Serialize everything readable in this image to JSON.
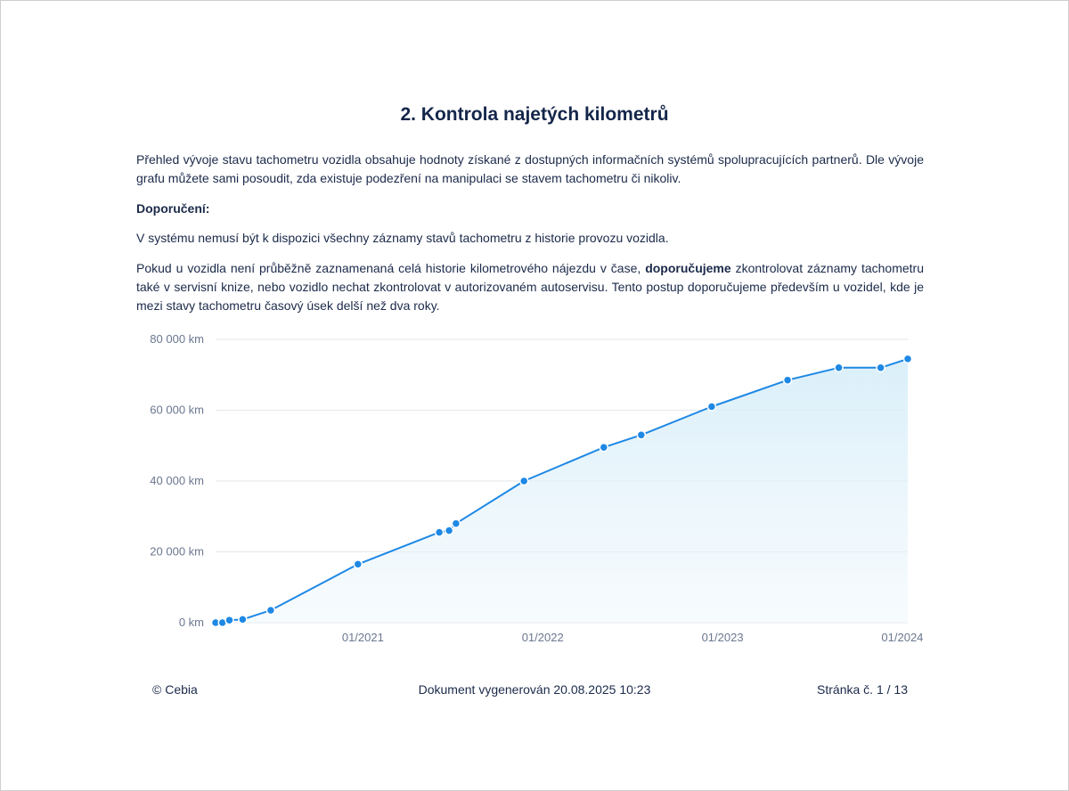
{
  "heading": "2. Kontrola najetých kilometrů",
  "intro": "Přehled vývoje stavu tachometru vozidla obsahuje hodnoty získané z dostupných informačních systémů spolupracujících partnerů. Dle vývoje grafu můžete sami posoudit, zda existuje podezření na manipulaci se stavem tachometru či nikoliv.",
  "recommendation_label": "Doporučení:",
  "note": "V systému nemusí být k dispozici všechny záznamy stavů tachometru z historie provozu vozidla.",
  "advice": {
    "before": "Pokud u vozidla není průběžně zaznamenaná celá historie kilometrového nájezdu v čase, ",
    "bold": "doporučujeme",
    "after": " zkontrolovat záznamy tachometru také v servisní knize, nebo vozidlo nechat zkontrolovat v autorizovaném autoservisu. Tento postup doporučujeme především u vozidel, kde je mezi stavy tachometru časový úsek delší než dva roky."
  },
  "chart_data": {
    "type": "area",
    "title": "",
    "xlabel": "",
    "ylabel": "",
    "ylim": [
      0,
      80000
    ],
    "yticks": [
      0,
      20000,
      40000,
      60000,
      80000
    ],
    "ytick_labels": [
      "0 km",
      "20 000 km",
      "40 000 km",
      "60 000 km",
      "80 000 km"
    ],
    "xlim": [
      "2020-03-08",
      "2024-01-12"
    ],
    "xticks": [
      "2021-01-01",
      "2022-01-01",
      "2023-01-01",
      "2024-01-01"
    ],
    "xtick_labels": [
      "01/2021",
      "01/2022",
      "01/2023",
      "01/2024"
    ],
    "grid": true,
    "colors": {
      "line": "#1e88e5",
      "fill": "#d8eef9",
      "grid": "#e3e6ea"
    },
    "series": [
      {
        "x": [
          "2020-03-08",
          "2020-03-22",
          "2020-04-05",
          "2020-05-02",
          "2020-06-28",
          "2020-12-22",
          "2021-06-05",
          "2021-06-25",
          "2021-07-09",
          "2021-11-24",
          "2022-05-05",
          "2022-07-20",
          "2022-12-10",
          "2023-05-13",
          "2023-08-25",
          "2023-11-18",
          "2024-01-12"
        ],
        "y": [
          0,
          0,
          700,
          900,
          3500,
          16500,
          25500,
          26000,
          28000,
          40000,
          49500,
          53000,
          61000,
          68500,
          72000,
          72000,
          74500
        ]
      }
    ]
  },
  "footer": {
    "copyright": "© Cebia",
    "generated": "Dokument vygenerován 20.08.2025 10:23",
    "page": "Stránka č. 1 / 13"
  }
}
